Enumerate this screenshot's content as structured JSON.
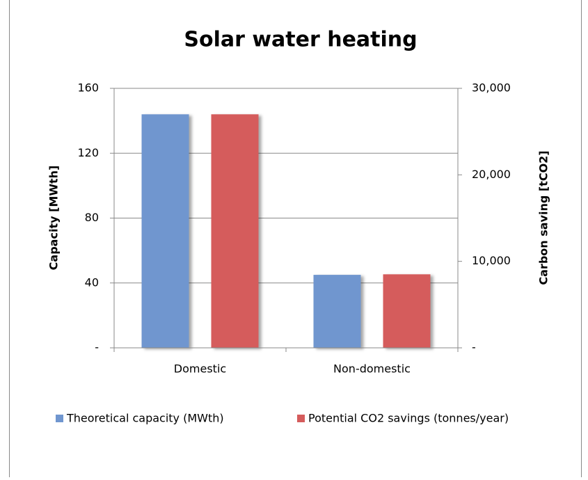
{
  "chart_data": {
    "type": "bar",
    "title": "Solar water heating",
    "categories": [
      "Domestic",
      "Non-domestic"
    ],
    "series": [
      {
        "name": "Theoretical capacity (MWth)",
        "color": "#7096cf",
        "values": [
          144,
          45
        ]
      },
      {
        "name": "Potential CO2 savings (tonnes/year)",
        "color": "#d55c5c",
        "values": [
          27000,
          8500
        ],
        "axis": "y2"
      }
    ],
    "ylabel": "Capacity [MWth]",
    "y2label": "Carbon saving [tCO2]",
    "ylim": [
      0,
      160
    ],
    "yticks": [
      {
        "value": 0,
        "label": "-"
      },
      40,
      80,
      120,
      160
    ],
    "y2lim": [
      0,
      30000
    ],
    "y2ticks": [
      {
        "value": 0,
        "label": "-"
      },
      {
        "value": 10000,
        "label": "10,000"
      },
      {
        "value": 20000,
        "label": "20,000"
      },
      {
        "value": 30000,
        "label": "30,000"
      }
    ],
    "grid": true,
    "legend": "bottom"
  }
}
